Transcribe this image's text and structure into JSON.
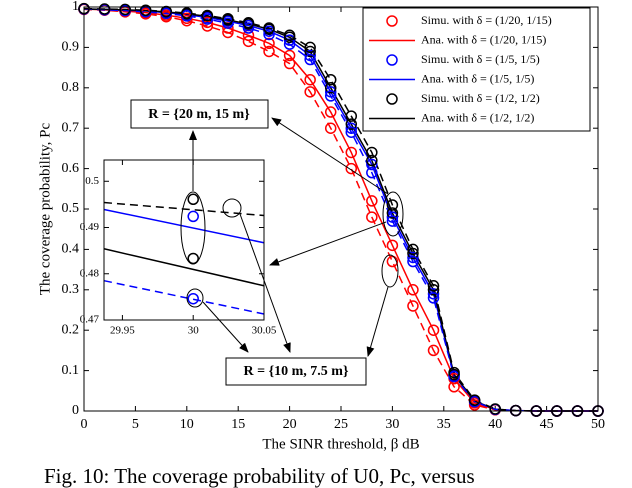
{
  "chart_data": [
    {
      "type": "line",
      "xlabel": "The SINR threshold, β dB",
      "ylabel": "The coverage probability, Pc",
      "x": [
        0,
        2,
        4,
        6,
        8,
        10,
        12,
        14,
        16,
        18,
        20,
        22,
        24,
        26,
        28,
        30,
        32,
        34,
        36,
        38,
        40,
        42,
        44,
        46,
        48,
        50
      ],
      "xlim": [
        0,
        50
      ],
      "xticks": [
        0,
        5,
        10,
        15,
        20,
        25,
        30,
        35,
        40,
        45,
        50
      ],
      "ylim": [
        0,
        1
      ],
      "yticks": [
        0,
        0.1,
        0.2,
        0.3,
        0.4,
        0.5,
        0.6,
        0.7,
        0.8,
        0.9,
        1
      ],
      "legend": "upper right",
      "series": [
        {
          "name": "Simu. with δ = (1/20, 1/15)",
          "mark": "circle",
          "color": "#ff0000",
          "values": [
            0.995,
            0.993,
            0.99,
            0.986,
            0.98,
            0.972,
            0.962,
            0.948,
            0.93,
            0.91,
            0.88,
            0.82,
            0.74,
            0.64,
            0.52,
            0.41,
            0.3,
            0.2,
            0.08,
            0.02,
            0.004,
            0.001,
            0,
            0,
            0,
            0
          ]
        },
        {
          "name": "Ana. with δ = (1/20, 1/15)",
          "mark": "line",
          "color": "#ff0000",
          "values": [
            0.995,
            0.993,
            0.99,
            0.986,
            0.98,
            0.972,
            0.962,
            0.948,
            0.93,
            0.91,
            0.88,
            0.82,
            0.74,
            0.64,
            0.52,
            0.41,
            0.3,
            0.2,
            0.08,
            0.02,
            0.004,
            0.001,
            0,
            0,
            0,
            0
          ]
        },
        {
          "name": "Simu. with δ = (1/5, 1/5)",
          "mark": "circle",
          "color": "#0000ff",
          "values": [
            0.995,
            0.994,
            0.992,
            0.99,
            0.986,
            0.981,
            0.974,
            0.965,
            0.954,
            0.94,
            0.918,
            0.88,
            0.79,
            0.7,
            0.61,
            0.48,
            0.38,
            0.29,
            0.088,
            0.024,
            0.004,
            0.001,
            0,
            0,
            0,
            0
          ]
        },
        {
          "name": "Ana. with δ = (1/5, 1/5)",
          "mark": "line",
          "color": "#0000ff",
          "values": [
            0.995,
            0.994,
            0.992,
            0.99,
            0.986,
            0.981,
            0.974,
            0.965,
            0.954,
            0.94,
            0.918,
            0.88,
            0.79,
            0.7,
            0.61,
            0.48,
            0.38,
            0.29,
            0.088,
            0.024,
            0.004,
            0.001,
            0,
            0,
            0,
            0
          ]
        },
        {
          "name": "Simu. with δ = (1/2, 1/2)",
          "mark": "circle",
          "color": "#000000",
          "values": [
            0.995,
            0.994,
            0.993,
            0.991,
            0.988,
            0.983,
            0.977,
            0.968,
            0.958,
            0.945,
            0.925,
            0.89,
            0.8,
            0.71,
            0.62,
            0.49,
            0.39,
            0.3,
            0.09,
            0.025,
            0.004,
            0.001,
            0,
            0,
            0,
            0
          ]
        },
        {
          "name": "Ana. with δ = (1/2, 1/2)",
          "mark": "line",
          "color": "#000000",
          "values": [
            0.995,
            0.994,
            0.993,
            0.991,
            0.988,
            0.983,
            0.977,
            0.968,
            0.958,
            0.945,
            0.925,
            0.89,
            0.8,
            0.71,
            0.62,
            0.49,
            0.39,
            0.3,
            0.09,
            0.025,
            0.004,
            0.001,
            0,
            0,
            0,
            0
          ]
        },
        {
          "mark": "line",
          "dash": true,
          "color": "#ff0000",
          "values": [
            0.994,
            0.992,
            0.988,
            0.983,
            0.976,
            0.966,
            0.953,
            0.937,
            0.915,
            0.89,
            0.86,
            0.79,
            0.7,
            0.6,
            0.48,
            0.37,
            0.26,
            0.15,
            0.06,
            0.015,
            0.003,
            0.001,
            0,
            0,
            0,
            0
          ]
        },
        {
          "mark": "circle",
          "color": "#ff0000",
          "values": [
            0.994,
            0.992,
            0.988,
            0.983,
            0.976,
            0.966,
            0.953,
            0.937,
            0.915,
            0.89,
            0.86,
            0.79,
            0.7,
            0.6,
            0.48,
            0.37,
            0.26,
            0.15,
            0.06,
            0.015,
            0.003,
            0.001,
            0,
            0,
            0,
            0
          ]
        },
        {
          "mark": "line",
          "dash": true,
          "color": "#0000ff",
          "values": [
            0.995,
            0.993,
            0.991,
            0.988,
            0.984,
            0.978,
            0.97,
            0.96,
            0.948,
            0.932,
            0.908,
            0.87,
            0.78,
            0.69,
            0.59,
            0.47,
            0.37,
            0.28,
            0.085,
            0.023,
            0.004,
            0.001,
            0,
            0,
            0,
            0
          ]
        },
        {
          "mark": "circle",
          "color": "#0000ff",
          "values": [
            0.995,
            0.993,
            0.991,
            0.988,
            0.984,
            0.978,
            0.97,
            0.96,
            0.948,
            0.932,
            0.908,
            0.87,
            0.78,
            0.69,
            0.59,
            0.47,
            0.37,
            0.28,
            0.085,
            0.023,
            0.004,
            0.001,
            0,
            0,
            0,
            0
          ]
        },
        {
          "mark": "line",
          "dash": true,
          "color": "#000000",
          "values": [
            0.996,
            0.995,
            0.994,
            0.992,
            0.989,
            0.985,
            0.979,
            0.971,
            0.961,
            0.948,
            0.93,
            0.9,
            0.82,
            0.73,
            0.64,
            0.51,
            0.4,
            0.31,
            0.095,
            0.027,
            0.005,
            0.001,
            0,
            0,
            0,
            0
          ]
        },
        {
          "mark": "circle",
          "color": "#000000",
          "values": [
            0.996,
            0.995,
            0.994,
            0.992,
            0.989,
            0.985,
            0.979,
            0.971,
            0.961,
            0.948,
            0.93,
            0.9,
            0.82,
            0.73,
            0.64,
            0.51,
            0.4,
            0.31,
            0.095,
            0.027,
            0.005,
            0.001,
            0,
            0,
            0,
            0
          ]
        }
      ]
    },
    {
      "type": "line",
      "xlim": [
        29.937,
        30.05
      ],
      "xticks": [
        29.95,
        30,
        30.05
      ],
      "ylim": [
        0.47,
        0.5046
      ],
      "yticks": [
        0.47,
        0.48,
        0.49,
        0.5
      ],
      "series": [
        {
          "mark": "line",
          "dash": true,
          "color": "#000000",
          "x": [
            29.937,
            30.05
          ],
          "values": [
            0.4954,
            0.4926
          ]
        },
        {
          "mark": "line",
          "color": "#0000ff",
          "x": [
            29.937,
            30.05
          ],
          "values": [
            0.4939,
            0.4867
          ]
        },
        {
          "mark": "line",
          "color": "#000000",
          "x": [
            29.937,
            30.05
          ],
          "values": [
            0.4854,
            0.4774
          ]
        },
        {
          "mark": "line",
          "dash": true,
          "color": "#0000ff",
          "x": [
            29.937,
            30.05
          ],
          "values": [
            0.4785,
            0.4713
          ]
        },
        {
          "mark": "circle",
          "color": "#000000",
          "x": [
            30
          ],
          "values": [
            0.4961
          ]
        },
        {
          "mark": "circle",
          "color": "#0000ff",
          "x": [
            30
          ],
          "values": [
            0.4924
          ]
        },
        {
          "mark": "circle",
          "color": "#000000",
          "x": [
            30
          ],
          "values": [
            0.4833
          ]
        },
        {
          "mark": "circle",
          "color": "#0000ff",
          "x": [
            30
          ],
          "values": [
            0.4746
          ]
        }
      ]
    }
  ],
  "annotations": [
    "R = {20 m, 15 m}",
    "R = {10 m, 7.5 m}"
  ],
  "caption": "Fig. 10: The coverage probability of U0, Pc, versus"
}
